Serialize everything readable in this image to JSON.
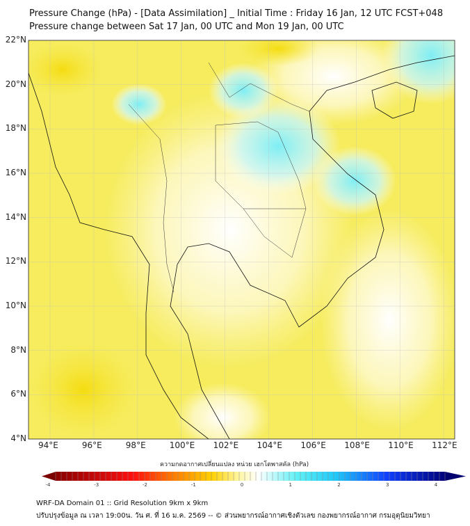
{
  "title": {
    "line1": "Pressure Change (hPa) - [Data Assimilation] _ Initial Time : Friday 16 Jan, 12 UTC FCST+048",
    "line2": "Pressure change between Sat 17 Jan, 00 UTC and Mon 19 Jan, 00 UTC"
  },
  "map": {
    "lat_labels": [
      "22°N",
      "20°N",
      "18°N",
      "16°N",
      "14°N",
      "12°N",
      "10°N",
      "8°N",
      "6°N",
      "4°N"
    ],
    "lon_labels": [
      "94°E",
      "96°E",
      "98°E",
      "100°E",
      "102°E",
      "104°E",
      "106°E",
      "108°E",
      "110°E",
      "112°E"
    ],
    "lat_range": [
      4,
      22
    ],
    "lon_range": [
      93,
      112.5
    ]
  },
  "colorbar": {
    "label": "ความกดอากาศเปลี่ยนแปลง หน่วย เฮกโตพาสคัล (hPa)",
    "ticks": [
      "-4",
      "-3",
      "-2",
      "-1",
      "0",
      "1",
      "2",
      "3",
      "4"
    ],
    "range": [
      -4,
      4
    ],
    "colors": [
      "#7a0000",
      "#e00000",
      "#ff6a00",
      "#ffd000",
      "#fff7a0",
      "#ffffff",
      "#a0f4f8",
      "#30e0f0",
      "#1060ff",
      "#000070"
    ]
  },
  "footer": {
    "line1": "WRF-DA Domain 01 :: Grid Resolution 9km x 9km",
    "line2": "ปรับปรุงข้อมูล ณ เวลา 19:00น. วัน ศ. ที่ 16 ม.ค. 2569 -- © ส่วนพยากรณ์อากาศเชิงตัวเลข กองพยากรณ์อากาศ กรมอุตุนิยมวิทยา"
  }
}
